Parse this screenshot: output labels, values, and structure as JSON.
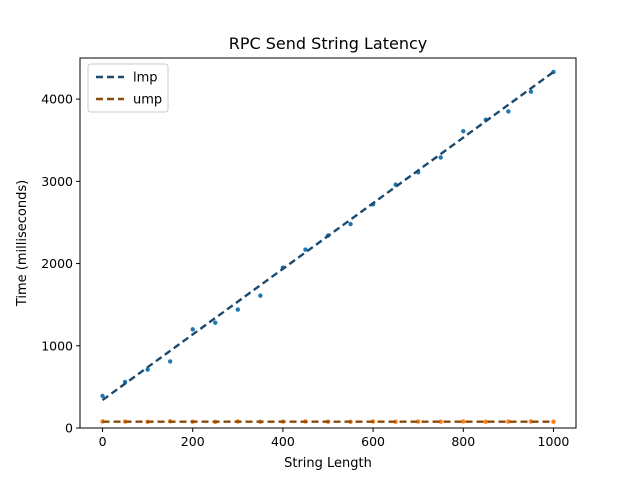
{
  "chart_data": {
    "type": "scatter",
    "title": "RPC Send String Latency",
    "xlabel": "String Length",
    "ylabel": "Time (milliseconds)",
    "xlim": [
      -50,
      1050
    ],
    "ylim": [
      0,
      4500
    ],
    "xticks": [
      0,
      200,
      400,
      600,
      800,
      1000
    ],
    "yticks": [
      0,
      1000,
      2000,
      3000,
      4000
    ],
    "grid": false,
    "legend_position": "top-left",
    "series": [
      {
        "name": "lmp",
        "color": "#1f77b4",
        "fit_color": "#1b4a6e",
        "x": [
          0,
          50,
          100,
          150,
          200,
          250,
          300,
          350,
          400,
          450,
          500,
          550,
          600,
          650,
          700,
          750,
          800,
          850,
          900,
          950,
          1000
        ],
        "y": [
          390,
          560,
          710,
          810,
          1200,
          1280,
          1440,
          1610,
          1950,
          2170,
          2340,
          2480,
          2720,
          2960,
          3110,
          3290,
          3610,
          3750,
          3850,
          4090,
          4330
        ],
        "fit": [
          340,
          4330
        ]
      },
      {
        "name": "ump",
        "color": "#ff7f0e",
        "fit_color": "#8b4a0a",
        "x": [
          0,
          50,
          100,
          150,
          200,
          250,
          300,
          350,
          400,
          450,
          500,
          550,
          600,
          650,
          700,
          750,
          800,
          850,
          900,
          950,
          1000
        ],
        "y": [
          80,
          78,
          75,
          82,
          77,
          74,
          79,
          76,
          78,
          80,
          77,
          75,
          79,
          76,
          78,
          77,
          80,
          76,
          78,
          79,
          77
        ],
        "fit": [
          77,
          77
        ]
      }
    ]
  }
}
